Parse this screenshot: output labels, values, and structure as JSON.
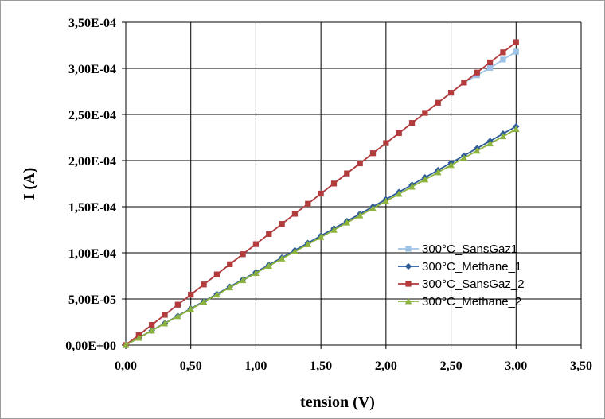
{
  "chart_data": {
    "type": "line",
    "xlabel": "tension (V)",
    "ylabel": "I (A)",
    "xlim": [
      0,
      3.5
    ],
    "ylim": [
      0,
      0.00035
    ],
    "x_tick_labels": [
      "0,00",
      "0,50",
      "1,00",
      "1,50",
      "2,00",
      "2,50",
      "3,00",
      "3,50"
    ],
    "y_tick_labels": [
      "0,00E+00",
      "5,00E-05",
      "1,00E-04",
      "1,50E-04",
      "2,00E-04",
      "2,50E-04",
      "3,00E-04",
      "3,50E-04"
    ],
    "x_ticks": [
      0,
      0.5,
      1,
      1.5,
      2,
      2.5,
      3,
      3.5
    ],
    "y_ticks": [
      0,
      5e-05,
      0.0001,
      0.00015,
      0.0002,
      0.00025,
      0.0003,
      0.00035
    ],
    "grid": true,
    "legend_position": "bottom-right",
    "x": [
      0,
      0.1,
      0.2,
      0.3,
      0.4,
      0.5,
      0.6,
      0.7,
      0.8,
      0.9,
      1.0,
      1.1,
      1.2,
      1.3,
      1.4,
      1.5,
      1.6,
      1.7,
      1.8,
      1.9,
      2.0,
      2.1,
      2.2,
      2.3,
      2.4,
      2.5,
      2.6,
      2.7,
      2.8,
      2.9,
      3.0
    ],
    "series": [
      {
        "name": "300°C_SansGaz1",
        "color": "#9dc3e6",
        "marker": "square",
        "values": [
          0,
          1.09e-05,
          2.19e-05,
          3.28e-05,
          4.38e-05,
          5.47e-05,
          6.57e-05,
          7.66e-05,
          8.76e-05,
          9.85e-05,
          0.0001094,
          0.0001204,
          0.0001313,
          0.0001423,
          0.0001532,
          0.0001642,
          0.0001751,
          0.0001861,
          0.000197,
          0.000208,
          0.0002189,
          0.0002298,
          0.0002408,
          0.0002517,
          0.0002627,
          0.0002736,
          0.0002846,
          0.0002925,
          0.0003005,
          0.0003095,
          0.000318
        ]
      },
      {
        "name": "300°C_Methane_1",
        "color": "#2e5c99",
        "marker": "diamond",
        "values": [
          0,
          7.9e-06,
          1.58e-05,
          2.37e-05,
          3.16e-05,
          3.95e-05,
          4.74e-05,
          5.53e-05,
          6.32e-05,
          7.11e-05,
          7.9e-05,
          8.69e-05,
          9.48e-05,
          0.0001027,
          0.0001106,
          0.0001185,
          0.0001264,
          0.0001343,
          0.0001422,
          0.0001501,
          0.000158,
          0.0001659,
          0.0001738,
          0.0001817,
          0.0001896,
          0.0001975,
          0.0002054,
          0.0002133,
          0.0002212,
          0.0002291,
          0.000237
        ]
      },
      {
        "name": "300°C_SansGaz_2",
        "color": "#b33b3b",
        "marker": "square",
        "values": [
          0,
          1.09e-05,
          2.19e-05,
          3.28e-05,
          4.38e-05,
          5.47e-05,
          6.57e-05,
          7.66e-05,
          8.76e-05,
          9.85e-05,
          0.0001094,
          0.0001204,
          0.0001313,
          0.0001423,
          0.0001532,
          0.0001642,
          0.0001751,
          0.0001861,
          0.000197,
          0.000208,
          0.0002189,
          0.0002298,
          0.0002408,
          0.0002517,
          0.0002627,
          0.0002736,
          0.0002846,
          0.0002955,
          0.0003065,
          0.0003174,
          0.0003284
        ]
      },
      {
        "name": "300°C_Methane_2",
        "color": "#8db33f",
        "marker": "triangle",
        "values": [
          0,
          7.8e-06,
          1.56e-05,
          2.34e-05,
          3.12e-05,
          3.9e-05,
          4.68e-05,
          5.46e-05,
          6.24e-05,
          7.02e-05,
          7.8e-05,
          8.58e-05,
          9.36e-05,
          0.0001014,
          0.0001092,
          0.000117,
          0.0001248,
          0.0001326,
          0.0001404,
          0.0001482,
          0.000156,
          0.0001638,
          0.0001716,
          0.0001794,
          0.0001872,
          0.000195,
          0.0002028,
          0.0002106,
          0.0002184,
          0.0002262,
          0.000234
        ]
      }
    ]
  }
}
